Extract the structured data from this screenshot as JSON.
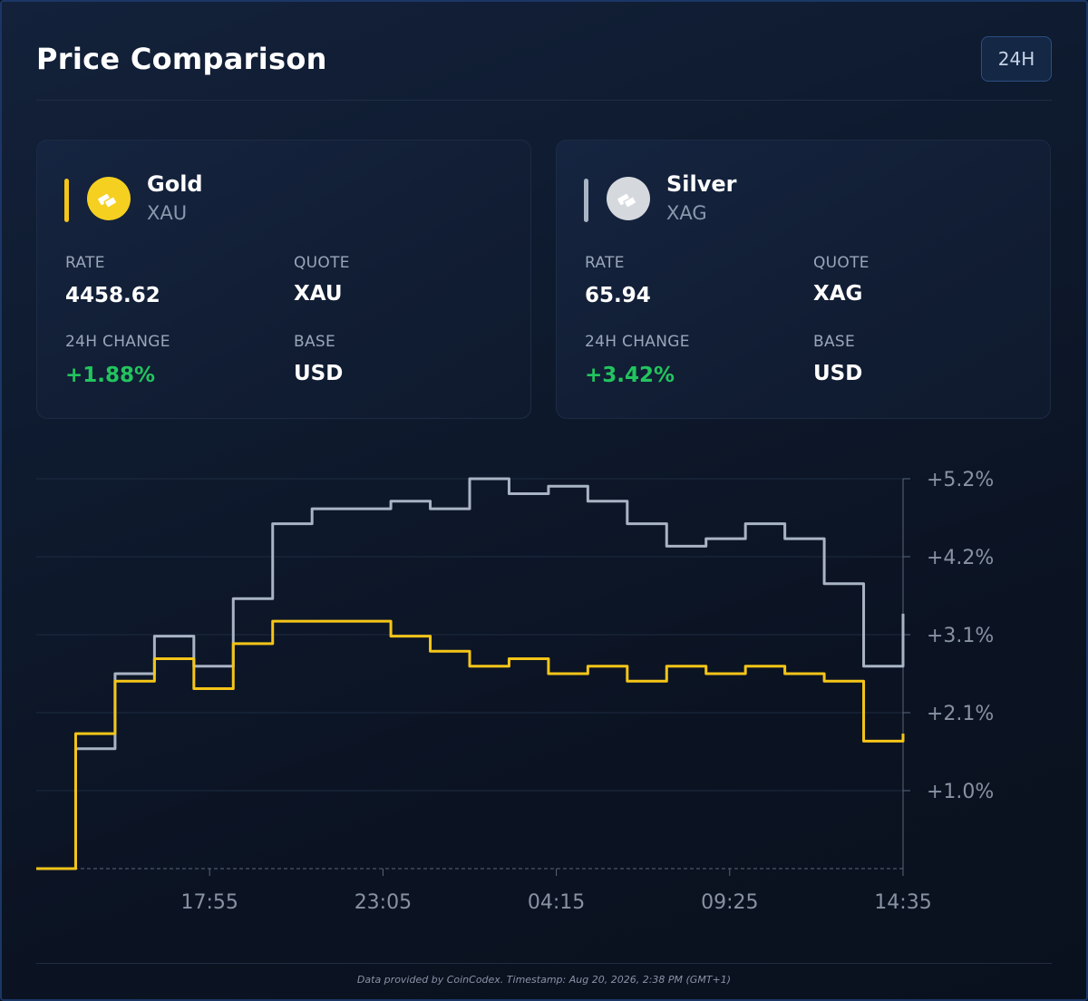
{
  "title": "Price Comparison",
  "period_button": "24H",
  "assets": [
    {
      "name": "Gold",
      "symbol": "XAU",
      "rate_label": "RATE",
      "rate": "4458.62",
      "quote_label": "QUOTE",
      "quote": "XAU",
      "change_label": "24H CHANGE",
      "change": "+1.88%",
      "base_label": "BASE",
      "base": "USD",
      "color": "#f5c518",
      "icon": "gold-bar-icon"
    },
    {
      "name": "Silver",
      "symbol": "XAG",
      "rate_label": "RATE",
      "rate": "65.94",
      "quote_label": "QUOTE",
      "quote": "XAG",
      "change_label": "24H CHANGE",
      "change": "+3.42%",
      "base_label": "BASE",
      "base": "USD",
      "color": "#a8b4c4",
      "icon": "silver-bar-icon"
    }
  ],
  "chart_data": {
    "type": "line",
    "x_tick_labels": [
      "17:55",
      "23:05",
      "04:15",
      "09:25",
      "14:35"
    ],
    "y_tick_labels": [
      "+1.0%",
      "+2.1%",
      "+3.1%",
      "+4.2%",
      "+5.2%"
    ],
    "y_axis_position": "right",
    "ylim": [
      0,
      5.2
    ],
    "grid": true,
    "x": [
      "14:35",
      "15:45",
      "17:10",
      "18:40",
      "20:10",
      "21:00",
      "22:00",
      "23:05",
      "00:20",
      "02:00",
      "03:20",
      "04:15",
      "05:10",
      "06:30",
      "07:30",
      "08:30",
      "09:25",
      "10:30",
      "11:30",
      "12:40",
      "13:50",
      "14:05",
      "14:35"
    ],
    "series": [
      {
        "color": "#a8b4c4",
        "values": [
          0.0,
          1.6,
          2.6,
          3.1,
          2.7,
          3.6,
          4.6,
          4.8,
          4.8,
          4.9,
          4.8,
          5.2,
          5.0,
          5.1,
          4.9,
          4.6,
          4.3,
          4.4,
          4.6,
          4.4,
          3.8,
          2.7,
          3.4
        ]
      },
      {
        "color": "#f5c518",
        "values": [
          0.0,
          1.8,
          2.5,
          2.8,
          2.4,
          3.0,
          3.3,
          3.3,
          3.3,
          3.1,
          2.9,
          2.7,
          2.8,
          2.6,
          2.7,
          2.5,
          2.7,
          2.6,
          2.7,
          2.6,
          2.5,
          1.7,
          1.8
        ]
      }
    ]
  },
  "footer": "Data provided by CoinCodex. Timestamp: Aug 20, 2026, 2:38 PM (GMT+1)"
}
